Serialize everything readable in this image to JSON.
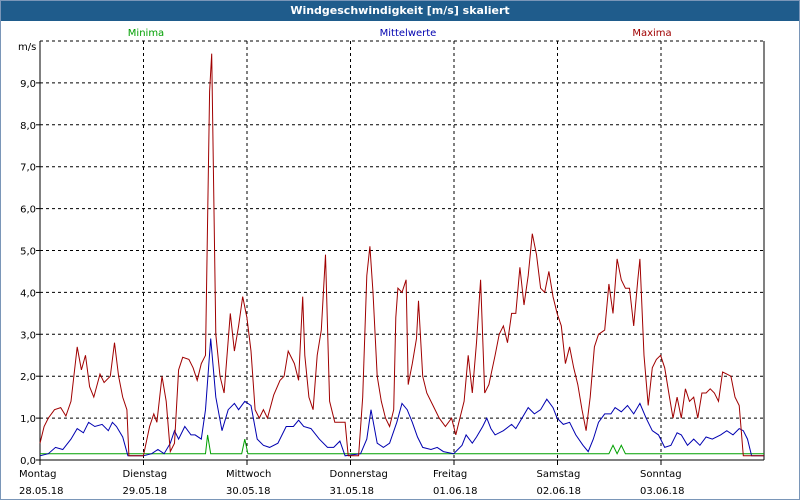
{
  "window": {
    "title": "Windgeschwindigkeit [m/s] skaliert"
  },
  "chart_data": {
    "type": "line",
    "title": "Windgeschwindigkeit [m/s] skaliert",
    "ylabel": "m/s",
    "ylim": [
      0,
      10
    ],
    "yticks": [
      "0,0",
      "1,0",
      "2,0",
      "3,0",
      "4,0",
      "5,0",
      "6,0",
      "7,0",
      "8,0",
      "9,0"
    ],
    "xlim": [
      0,
      7
    ],
    "grid": true,
    "legend_position": "top",
    "days": [
      {
        "weekday": "Montag",
        "date": "28.05.18"
      },
      {
        "weekday": "Dienstag",
        "date": "29.05.18"
      },
      {
        "weekday": "Mittwoch",
        "date": "30.05.18"
      },
      {
        "weekday": "Donnerstag",
        "date": "31.05.18"
      },
      {
        "weekday": "Freitag",
        "date": "01.06.18"
      },
      {
        "weekday": "Samstag",
        "date": "02.06.18"
      },
      {
        "weekday": "Sonntag",
        "date": "03.06.18"
      }
    ],
    "series": [
      {
        "name": "Minima",
        "color": "#00a000",
        "points": [
          [
            0,
            0.15
          ],
          [
            1.6,
            0.15
          ],
          [
            1.62,
            0.6
          ],
          [
            1.65,
            0.15
          ],
          [
            1.95,
            0.15
          ],
          [
            1.98,
            0.5
          ],
          [
            2.01,
            0.15
          ],
          [
            5.5,
            0.15
          ],
          [
            5.54,
            0.35
          ],
          [
            5.58,
            0.15
          ],
          [
            5.62,
            0.35
          ],
          [
            5.66,
            0.15
          ],
          [
            7,
            0.15
          ]
        ]
      },
      {
        "name": "Mittelwerte",
        "color": "#0000b0",
        "points": [
          [
            0,
            0.1
          ],
          [
            0.08,
            0.15
          ],
          [
            0.15,
            0.3
          ],
          [
            0.22,
            0.25
          ],
          [
            0.3,
            0.5
          ],
          [
            0.36,
            0.75
          ],
          [
            0.42,
            0.65
          ],
          [
            0.47,
            0.9
          ],
          [
            0.53,
            0.8
          ],
          [
            0.6,
            0.85
          ],
          [
            0.66,
            0.7
          ],
          [
            0.7,
            0.9
          ],
          [
            0.74,
            0.8
          ],
          [
            0.8,
            0.55
          ],
          [
            0.85,
            0.1
          ],
          [
            1.0,
            0.1
          ],
          [
            1.08,
            0.15
          ],
          [
            1.14,
            0.25
          ],
          [
            1.2,
            0.15
          ],
          [
            1.26,
            0.4
          ],
          [
            1.3,
            0.7
          ],
          [
            1.34,
            0.5
          ],
          [
            1.4,
            0.8
          ],
          [
            1.46,
            0.6
          ],
          [
            1.5,
            0.6
          ],
          [
            1.56,
            0.5
          ],
          [
            1.6,
            1.2
          ],
          [
            1.65,
            2.9
          ],
          [
            1.7,
            1.5
          ],
          [
            1.76,
            0.7
          ],
          [
            1.82,
            1.2
          ],
          [
            1.88,
            1.35
          ],
          [
            1.92,
            1.2
          ],
          [
            1.98,
            1.4
          ],
          [
            2.04,
            1.3
          ],
          [
            2.1,
            0.5
          ],
          [
            2.16,
            0.35
          ],
          [
            2.22,
            0.3
          ],
          [
            2.3,
            0.4
          ],
          [
            2.38,
            0.8
          ],
          [
            2.45,
            0.8
          ],
          [
            2.5,
            0.95
          ],
          [
            2.55,
            0.8
          ],
          [
            2.62,
            0.75
          ],
          [
            2.7,
            0.5
          ],
          [
            2.78,
            0.3
          ],
          [
            2.84,
            0.3
          ],
          [
            2.9,
            0.45
          ],
          [
            2.95,
            0.1
          ],
          [
            3.1,
            0.15
          ],
          [
            3.16,
            0.5
          ],
          [
            3.2,
            1.2
          ],
          [
            3.26,
            0.4
          ],
          [
            3.32,
            0.3
          ],
          [
            3.38,
            0.4
          ],
          [
            3.45,
            0.9
          ],
          [
            3.5,
            1.35
          ],
          [
            3.55,
            1.2
          ],
          [
            3.6,
            0.9
          ],
          [
            3.65,
            0.55
          ],
          [
            3.7,
            0.3
          ],
          [
            3.78,
            0.25
          ],
          [
            3.84,
            0.3
          ],
          [
            3.9,
            0.2
          ],
          [
            4.0,
            0.15
          ],
          [
            4.08,
            0.35
          ],
          [
            4.12,
            0.6
          ],
          [
            4.18,
            0.4
          ],
          [
            4.22,
            0.55
          ],
          [
            4.28,
            0.8
          ],
          [
            4.32,
            1.0
          ],
          [
            4.36,
            0.75
          ],
          [
            4.4,
            0.6
          ],
          [
            4.48,
            0.7
          ],
          [
            4.56,
            0.85
          ],
          [
            4.6,
            0.75
          ],
          [
            4.66,
            1.0
          ],
          [
            4.72,
            1.25
          ],
          [
            4.78,
            1.1
          ],
          [
            4.84,
            1.2
          ],
          [
            4.9,
            1.45
          ],
          [
            4.96,
            1.25
          ],
          [
            5.0,
            1.0
          ],
          [
            5.06,
            0.85
          ],
          [
            5.12,
            0.9
          ],
          [
            5.18,
            0.6
          ],
          [
            5.25,
            0.35
          ],
          [
            5.3,
            0.2
          ],
          [
            5.35,
            0.5
          ],
          [
            5.4,
            0.9
          ],
          [
            5.46,
            1.1
          ],
          [
            5.52,
            1.1
          ],
          [
            5.56,
            1.25
          ],
          [
            5.62,
            1.15
          ],
          [
            5.68,
            1.3
          ],
          [
            5.74,
            1.1
          ],
          [
            5.8,
            1.35
          ],
          [
            5.86,
            1.0
          ],
          [
            5.92,
            0.7
          ],
          [
            5.98,
            0.6
          ],
          [
            6.04,
            0.3
          ],
          [
            6.1,
            0.35
          ],
          [
            6.16,
            0.65
          ],
          [
            6.2,
            0.6
          ],
          [
            6.26,
            0.35
          ],
          [
            6.32,
            0.5
          ],
          [
            6.38,
            0.35
          ],
          [
            6.44,
            0.55
          ],
          [
            6.5,
            0.5
          ],
          [
            6.58,
            0.6
          ],
          [
            6.64,
            0.7
          ],
          [
            6.7,
            0.6
          ],
          [
            6.76,
            0.75
          ],
          [
            6.8,
            0.7
          ],
          [
            6.84,
            0.5
          ],
          [
            6.88,
            0.1
          ],
          [
            7,
            0.1
          ]
        ]
      },
      {
        "name": "Maxima",
        "color": "#a00000",
        "points": [
          [
            0,
            0.4
          ],
          [
            0.04,
            0.8
          ],
          [
            0.08,
            1.0
          ],
          [
            0.14,
            1.2
          ],
          [
            0.2,
            1.25
          ],
          [
            0.25,
            1.05
          ],
          [
            0.3,
            1.4
          ],
          [
            0.36,
            2.7
          ],
          [
            0.4,
            2.15
          ],
          [
            0.44,
            2.5
          ],
          [
            0.48,
            1.75
          ],
          [
            0.52,
            1.5
          ],
          [
            0.58,
            2.05
          ],
          [
            0.62,
            1.85
          ],
          [
            0.68,
            2.0
          ],
          [
            0.72,
            2.8
          ],
          [
            0.76,
            2.0
          ],
          [
            0.8,
            1.5
          ],
          [
            0.84,
            1.2
          ],
          [
            0.86,
            0.1
          ],
          [
            1.0,
            0.1
          ],
          [
            1.06,
            0.8
          ],
          [
            1.1,
            1.1
          ],
          [
            1.13,
            0.9
          ],
          [
            1.18,
            2.0
          ],
          [
            1.22,
            1.4
          ],
          [
            1.26,
            0.2
          ],
          [
            1.3,
            0.4
          ],
          [
            1.34,
            2.15
          ],
          [
            1.38,
            2.45
          ],
          [
            1.44,
            2.4
          ],
          [
            1.48,
            2.2
          ],
          [
            1.52,
            1.9
          ],
          [
            1.56,
            2.3
          ],
          [
            1.6,
            2.5
          ],
          [
            1.64,
            8.8
          ],
          [
            1.66,
            9.7
          ],
          [
            1.7,
            3.0
          ],
          [
            1.74,
            2.0
          ],
          [
            1.78,
            1.6
          ],
          [
            1.84,
            3.5
          ],
          [
            1.88,
            2.6
          ],
          [
            1.92,
            3.2
          ],
          [
            1.96,
            3.9
          ],
          [
            2.0,
            3.4
          ],
          [
            2.04,
            2.6
          ],
          [
            2.08,
            1.2
          ],
          [
            2.12,
            1.0
          ],
          [
            2.16,
            1.2
          ],
          [
            2.2,
            1.0
          ],
          [
            2.26,
            1.55
          ],
          [
            2.32,
            1.9
          ],
          [
            2.36,
            2.0
          ],
          [
            2.4,
            2.6
          ],
          [
            2.46,
            2.3
          ],
          [
            2.5,
            1.9
          ],
          [
            2.54,
            3.9
          ],
          [
            2.56,
            2.5
          ],
          [
            2.6,
            1.5
          ],
          [
            2.64,
            1.2
          ],
          [
            2.68,
            2.5
          ],
          [
            2.72,
            3.1
          ],
          [
            2.76,
            4.9
          ],
          [
            2.8,
            1.4
          ],
          [
            2.85,
            0.9
          ],
          [
            2.95,
            0.9
          ],
          [
            2.98,
            0.1
          ],
          [
            3.08,
            0.1
          ],
          [
            3.12,
            1.5
          ],
          [
            3.16,
            4.4
          ],
          [
            3.19,
            5.1
          ],
          [
            3.22,
            4.0
          ],
          [
            3.26,
            2.0
          ],
          [
            3.3,
            1.4
          ],
          [
            3.34,
            1.0
          ],
          [
            3.38,
            0.8
          ],
          [
            3.42,
            1.2
          ],
          [
            3.44,
            3.4
          ],
          [
            3.46,
            4.1
          ],
          [
            3.5,
            4.0
          ],
          [
            3.54,
            4.3
          ],
          [
            3.56,
            1.8
          ],
          [
            3.6,
            2.3
          ],
          [
            3.64,
            2.9
          ],
          [
            3.66,
            3.8
          ],
          [
            3.7,
            2.0
          ],
          [
            3.74,
            1.6
          ],
          [
            3.8,
            1.3
          ],
          [
            3.86,
            1.0
          ],
          [
            3.92,
            0.8
          ],
          [
            3.98,
            1.0
          ],
          [
            4.02,
            0.6
          ],
          [
            4.06,
            1.0
          ],
          [
            4.1,
            1.4
          ],
          [
            4.14,
            2.5
          ],
          [
            4.18,
            1.6
          ],
          [
            4.22,
            2.8
          ],
          [
            4.26,
            4.3
          ],
          [
            4.3,
            1.6
          ],
          [
            4.34,
            1.8
          ],
          [
            4.4,
            2.5
          ],
          [
            4.44,
            3.0
          ],
          [
            4.48,
            3.2
          ],
          [
            4.52,
            2.8
          ],
          [
            4.56,
            3.5
          ],
          [
            4.6,
            3.5
          ],
          [
            4.64,
            4.6
          ],
          [
            4.68,
            3.7
          ],
          [
            4.72,
            4.4
          ],
          [
            4.76,
            5.4
          ],
          [
            4.8,
            4.9
          ],
          [
            4.84,
            4.1
          ],
          [
            4.88,
            4.0
          ],
          [
            4.92,
            4.5
          ],
          [
            4.96,
            3.9
          ],
          [
            5.0,
            3.5
          ],
          [
            5.04,
            3.2
          ],
          [
            5.08,
            2.3
          ],
          [
            5.12,
            2.7
          ],
          [
            5.16,
            2.2
          ],
          [
            5.2,
            1.8
          ],
          [
            5.24,
            1.2
          ],
          [
            5.28,
            0.7
          ],
          [
            5.32,
            1.5
          ],
          [
            5.36,
            2.7
          ],
          [
            5.4,
            3.0
          ],
          [
            5.46,
            3.1
          ],
          [
            5.5,
            4.2
          ],
          [
            5.54,
            3.5
          ],
          [
            5.58,
            4.8
          ],
          [
            5.62,
            4.3
          ],
          [
            5.66,
            4.1
          ],
          [
            5.7,
            4.1
          ],
          [
            5.74,
            3.2
          ],
          [
            5.78,
            4.3
          ],
          [
            5.8,
            4.8
          ],
          [
            5.84,
            2.5
          ],
          [
            5.88,
            1.3
          ],
          [
            5.92,
            2.2
          ],
          [
            5.96,
            2.4
          ],
          [
            6.0,
            2.5
          ],
          [
            6.04,
            2.2
          ],
          [
            6.08,
            1.6
          ],
          [
            6.12,
            1.0
          ],
          [
            6.16,
            1.5
          ],
          [
            6.2,
            1.0
          ],
          [
            6.24,
            1.7
          ],
          [
            6.28,
            1.4
          ],
          [
            6.32,
            1.5
          ],
          [
            6.36,
            1.0
          ],
          [
            6.4,
            1.6
          ],
          [
            6.44,
            1.6
          ],
          [
            6.48,
            1.7
          ],
          [
            6.52,
            1.6
          ],
          [
            6.56,
            1.4
          ],
          [
            6.6,
            2.1
          ],
          [
            6.64,
            2.05
          ],
          [
            6.68,
            2.0
          ],
          [
            6.72,
            1.5
          ],
          [
            6.76,
            1.3
          ],
          [
            6.8,
            0.1
          ],
          [
            7,
            0.1
          ]
        ]
      }
    ]
  }
}
